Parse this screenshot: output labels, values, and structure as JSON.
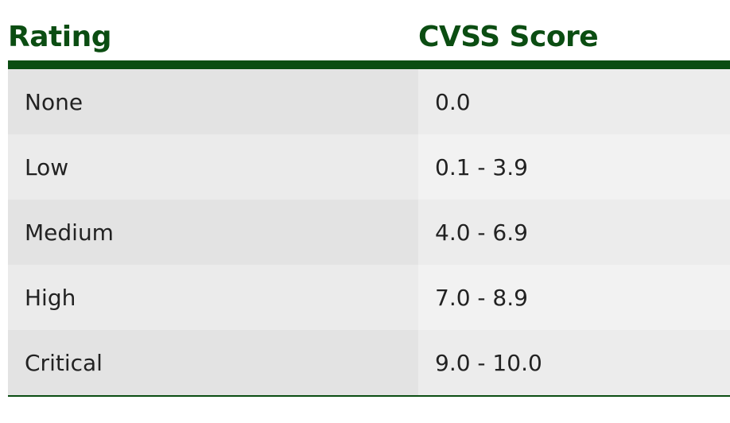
{
  "table": {
    "headers": [
      "Rating",
      "CVSS Score"
    ],
    "rows": [
      {
        "rating": "None",
        "score": "0.0"
      },
      {
        "rating": "Low",
        "score": "0.1 - 3.9"
      },
      {
        "rating": "Medium",
        "score": "4.0 - 6.9"
      },
      {
        "rating": "High",
        "score": "7.0 - 8.9"
      },
      {
        "rating": "Critical",
        "score": "9.0 - 10.0"
      }
    ]
  },
  "colors": {
    "header_text": "#0b4d12",
    "rule": "#0b4d12",
    "body_text": "#222222"
  }
}
